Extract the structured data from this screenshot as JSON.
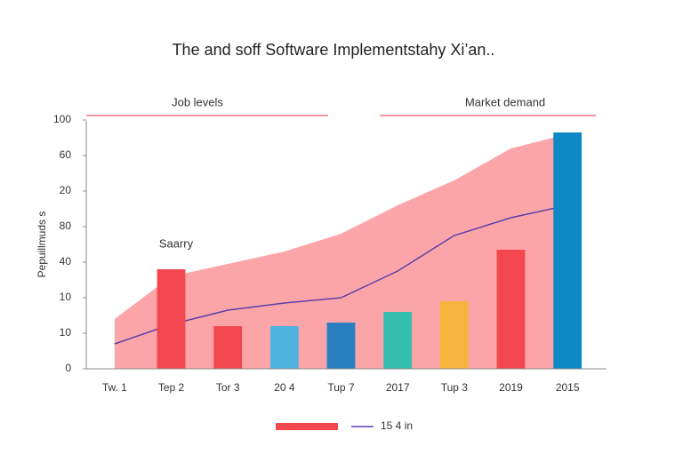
{
  "chart_data": {
    "type": "combo",
    "title": "The and soff Software Implementstahy Xi’an..",
    "y_label": "Pepuillmuds s",
    "annotations": [
      "Job levels",
      "Market demand",
      "Saarry"
    ],
    "categories": [
      "Tw. 1",
      "Tep 2",
      "Tor 3",
      "20 4",
      "Tup 7",
      "2017",
      "Tup 3",
      "2019",
      "2015"
    ],
    "ylim": [
      0,
      70
    ],
    "yticks": [
      0,
      {
        "value": 10,
        "label": "10"
      },
      {
        "value": 20,
        "label": "10"
      },
      {
        "value": 30,
        "label": "40"
      },
      {
        "value": 40,
        "label": "80"
      },
      {
        "value": 50,
        "label": "20"
      },
      60,
      {
        "value": 70,
        "label": "100"
      }
    ],
    "area": {
      "color": "#fca5a8",
      "values": [
        14,
        26,
        29.5,
        33,
        38,
        46,
        53,
        62,
        66
      ]
    },
    "line": {
      "name": "15 4 in",
      "color": "#5b3fa8",
      "values": [
        7,
        12.5,
        16.5,
        18.5,
        20,
        27.5,
        37.5,
        42.5,
        46
      ]
    },
    "bars": {
      "color": "#f2474f",
      "values": [
        null,
        28,
        12,
        12,
        13,
        16,
        19,
        33.5,
        66.5
      ],
      "colors": [
        null,
        "#f2474f",
        "#f2474f",
        "#4fb3e0",
        "#2a7fc1",
        "#36bfae",
        "#f6b43c",
        "#f2474f",
        "#0d8ac4"
      ]
    }
  }
}
